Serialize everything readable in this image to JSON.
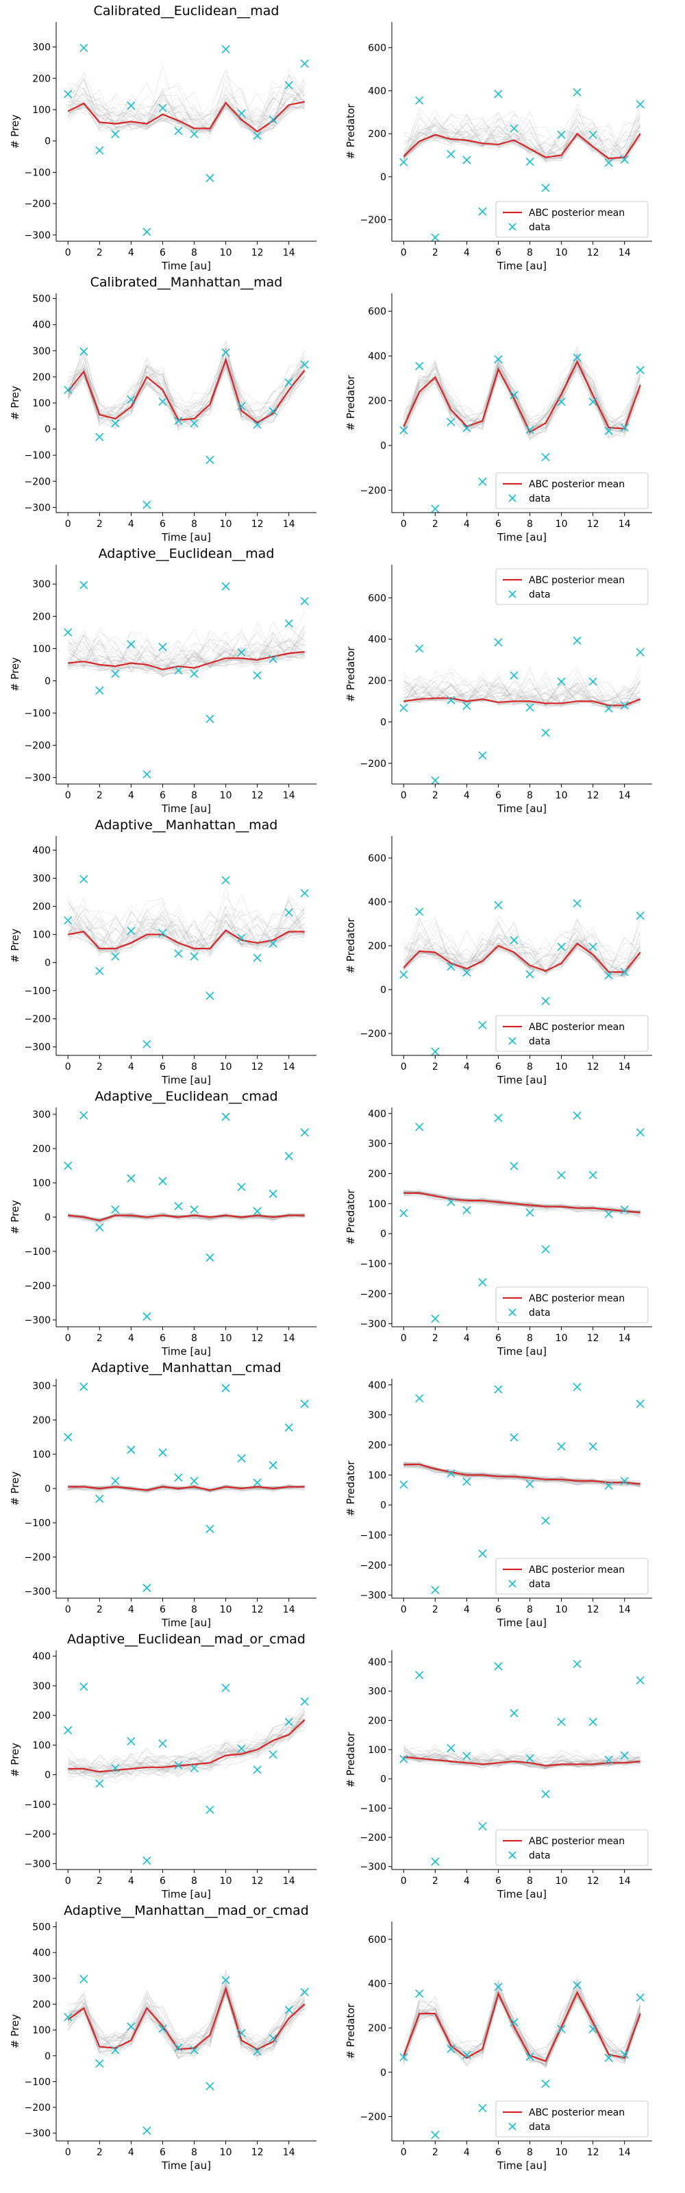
{
  "colors": {
    "mean": "#d62728",
    "data": "#17becf",
    "samples": "#9a9a9a"
  },
  "legend": {
    "mean_label": "ABC posterior mean",
    "data_label": "data"
  },
  "chart_data": {
    "type": "line",
    "x": [
      0,
      1,
      2,
      3,
      4,
      5,
      6,
      7,
      8,
      9,
      10,
      11,
      12,
      13,
      14,
      15
    ],
    "xlabel": "Time [au]",
    "xticks": [
      0,
      2,
      4,
      6,
      8,
      10,
      12,
      14
    ],
    "data_prey": [
      150,
      297,
      -30,
      22,
      113,
      -290,
      105,
      32,
      22,
      -118,
      293,
      88,
      17,
      68,
      178,
      247
    ],
    "data_predator": [
      68,
      355,
      -283,
      105,
      78,
      -162,
      385,
      225,
      70,
      -52,
      195,
      393,
      195,
      65,
      80,
      337
    ],
    "panels": [
      {
        "title": "Calibrated__Euclidean__mad",
        "prey": {
          "ylabel": "# Prey",
          "ylim": [
            -320,
            380
          ],
          "yticks": [
            -300,
            -200,
            -100,
            0,
            100,
            200,
            300
          ],
          "mean": [
            95,
            120,
            60,
            55,
            62,
            55,
            85,
            65,
            40,
            40,
            122,
            68,
            30,
            65,
            115,
            125
          ],
          "band": [
            40,
            160
          ],
          "legend": ""
        },
        "predator": {
          "ylabel": "# Predator",
          "ylim": [
            -300,
            720
          ],
          "yticks": [
            -200,
            0,
            200,
            400,
            600
          ],
          "mean": [
            95,
            165,
            195,
            175,
            170,
            155,
            150,
            170,
            130,
            90,
            100,
            200,
            140,
            85,
            90,
            200
          ],
          "band": [
            40,
            200
          ],
          "legend": "bottom-right"
        }
      },
      {
        "title": "Calibrated__Manhattan__mad",
        "prey": {
          "ylabel": "# Prey",
          "ylim": [
            -320,
            520
          ],
          "yticks": [
            -300,
            -200,
            -100,
            0,
            100,
            200,
            300,
            400,
            500
          ],
          "mean": [
            145,
            220,
            55,
            40,
            85,
            200,
            150,
            35,
            40,
            95,
            265,
            70,
            25,
            60,
            150,
            225
          ],
          "band": [
            60,
            120
          ],
          "legend": ""
        },
        "predator": {
          "ylabel": "# Predator",
          "ylim": [
            -300,
            680
          ],
          "yticks": [
            -200,
            0,
            200,
            400,
            600
          ],
          "mean": [
            85,
            240,
            305,
            160,
            85,
            110,
            340,
            210,
            60,
            100,
            230,
            375,
            225,
            80,
            75,
            270
          ],
          "band": [
            60,
            120
          ],
          "legend": "bottom-right"
        }
      },
      {
        "title": "Adaptive__Euclidean__mad",
        "prey": {
          "ylabel": "# Prey",
          "ylim": [
            -320,
            360
          ],
          "yticks": [
            -300,
            -200,
            -100,
            0,
            100,
            200,
            300
          ],
          "mean": [
            55,
            60,
            50,
            45,
            55,
            50,
            35,
            45,
            40,
            55,
            70,
            70,
            65,
            75,
            85,
            90
          ],
          "band": [
            40,
            140
          ],
          "legend": ""
        },
        "predator": {
          "ylabel": "# Predator",
          "ylim": [
            -300,
            760
          ],
          "yticks": [
            -200,
            0,
            200,
            400,
            600
          ],
          "mean": [
            100,
            110,
            115,
            115,
            100,
            110,
            95,
            100,
            100,
            90,
            90,
            100,
            100,
            80,
            80,
            110
          ],
          "band": [
            30,
            200
          ],
          "legend": "top-right"
        }
      },
      {
        "title": "Adaptive__Manhattan__mad",
        "prey": {
          "ylabel": "# Prey",
          "ylim": [
            -330,
            450
          ],
          "yticks": [
            -300,
            -200,
            -100,
            0,
            100,
            200,
            300,
            400
          ],
          "mean": [
            100,
            110,
            50,
            50,
            70,
            100,
            100,
            70,
            50,
            50,
            115,
            80,
            70,
            80,
            110,
            110
          ],
          "band": [
            40,
            180
          ],
          "legend": ""
        },
        "predator": {
          "ylabel": "# Predator",
          "ylim": [
            -300,
            700
          ],
          "yticks": [
            -200,
            0,
            200,
            400,
            600
          ],
          "mean": [
            100,
            175,
            170,
            120,
            95,
            130,
            200,
            170,
            110,
            85,
            120,
            210,
            160,
            80,
            80,
            170
          ],
          "band": [
            40,
            200
          ],
          "legend": "bottom-right"
        }
      },
      {
        "title": "Adaptive__Euclidean__cmad",
        "prey": {
          "ylabel": "# Prey",
          "ylim": [
            -320,
            320
          ],
          "yticks": [
            -300,
            -200,
            -100,
            0,
            100,
            200,
            300
          ],
          "mean": [
            5,
            0,
            -10,
            5,
            5,
            0,
            5,
            0,
            5,
            0,
            5,
            0,
            5,
            0,
            5,
            5
          ],
          "band": [
            15,
            10
          ],
          "legend": ""
        },
        "predator": {
          "ylabel": "# Predator",
          "ylim": [
            -310,
            420
          ],
          "yticks": [
            -300,
            -200,
            -100,
            0,
            100,
            200,
            300,
            400
          ],
          "mean": [
            135,
            135,
            125,
            115,
            110,
            110,
            105,
            100,
            95,
            90,
            90,
            85,
            85,
            80,
            75,
            70
          ],
          "band": [
            20,
            15
          ],
          "legend": "bottom-right"
        }
      },
      {
        "title": "Adaptive__Manhattan__cmad",
        "prey": {
          "ylabel": "# Prey",
          "ylim": [
            -320,
            320
          ],
          "yticks": [
            -300,
            -200,
            -100,
            0,
            100,
            200,
            300
          ],
          "mean": [
            5,
            5,
            0,
            5,
            0,
            -5,
            5,
            0,
            5,
            -5,
            5,
            0,
            5,
            0,
            5,
            5
          ],
          "band": [
            15,
            10
          ],
          "legend": ""
        },
        "predator": {
          "ylabel": "# Predator",
          "ylim": [
            -310,
            420
          ],
          "yticks": [
            -300,
            -200,
            -100,
            0,
            100,
            200,
            300,
            400
          ],
          "mean": [
            135,
            135,
            120,
            110,
            100,
            100,
            95,
            95,
            90,
            85,
            85,
            80,
            80,
            75,
            75,
            70
          ],
          "band": [
            20,
            15
          ],
          "legend": "bottom-right"
        }
      },
      {
        "title": "Adaptive__Euclidean__mad_or_cmad",
        "prey": {
          "ylabel": "# Prey",
          "ylim": [
            -320,
            420
          ],
          "yticks": [
            -300,
            -200,
            -100,
            0,
            100,
            200,
            300,
            400
          ],
          "mean": [
            20,
            20,
            10,
            15,
            20,
            25,
            25,
            30,
            35,
            40,
            65,
            70,
            85,
            115,
            135,
            185
          ],
          "band": [
            50,
            80
          ],
          "legend": ""
        },
        "predator": {
          "ylabel": "# Predator",
          "ylim": [
            -310,
            440
          ],
          "yticks": [
            -300,
            -200,
            -100,
            0,
            100,
            200,
            300,
            400
          ],
          "mean": [
            75,
            70,
            65,
            60,
            55,
            50,
            55,
            60,
            55,
            45,
            50,
            50,
            50,
            55,
            55,
            60
          ],
          "band": [
            20,
            60
          ],
          "legend": "bottom-right"
        }
      },
      {
        "title": "Adaptive__Manhattan__mad_or_cmad",
        "prey": {
          "ylabel": "# Prey",
          "ylim": [
            -330,
            520
          ],
          "yticks": [
            -300,
            -200,
            -100,
            0,
            100,
            200,
            300,
            400,
            500
          ],
          "mean": [
            140,
            185,
            35,
            30,
            60,
            185,
            115,
            25,
            30,
            80,
            260,
            60,
            25,
            55,
            145,
            200
          ],
          "band": [
            60,
            100
          ],
          "legend": ""
        },
        "predator": {
          "ylabel": "# Predator",
          "ylim": [
            -310,
            680
          ],
          "yticks": [
            -200,
            0,
            200,
            400,
            600
          ],
          "mean": [
            75,
            265,
            265,
            120,
            65,
            105,
            355,
            205,
            75,
            50,
            205,
            360,
            225,
            80,
            65,
            265
          ],
          "band": [
            50,
            100
          ],
          "legend": "bottom-right"
        }
      }
    ]
  }
}
